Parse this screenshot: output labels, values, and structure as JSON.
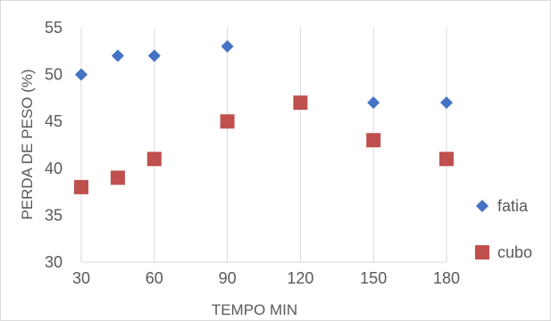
{
  "chart_data": {
    "type": "scatter",
    "title": "",
    "xlabel": "TEMPO MIN",
    "ylabel": "PERDA DE PESO (%)",
    "xlim": [
      30,
      180
    ],
    "ylim": [
      30,
      55
    ],
    "x_ticks": [
      30,
      60,
      90,
      120,
      150,
      180
    ],
    "y_ticks": [
      30,
      35,
      40,
      45,
      50,
      55
    ],
    "grid": "vertical",
    "legend_position": "right",
    "series": [
      {
        "name": "fatia",
        "marker": "diamond",
        "color": "#4472C4",
        "x": [
          30,
          45,
          60,
          90,
          150,
          180
        ],
        "y": [
          50,
          52,
          52,
          53,
          47,
          47
        ]
      },
      {
        "name": "cubo",
        "marker": "square",
        "color": "#C0504D",
        "x": [
          30,
          45,
          60,
          90,
          120,
          150,
          180
        ],
        "y": [
          38,
          39,
          41,
          45,
          47,
          43,
          41
        ]
      }
    ]
  }
}
